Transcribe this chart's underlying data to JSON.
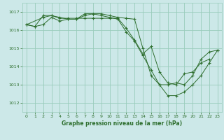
{
  "background_color": "#cce8e8",
  "grid_color": "#99ccbb",
  "line_color": "#2d6e2d",
  "marker_color": "#2d6e2d",
  "title": "Graphe pression niveau de la mer (hPa)",
  "xlim": [
    -0.5,
    23.5
  ],
  "ylim": [
    1011.5,
    1017.5
  ],
  "yticks": [
    1012,
    1013,
    1014,
    1015,
    1016,
    1017
  ],
  "xticks": [
    0,
    1,
    2,
    3,
    4,
    5,
    6,
    7,
    8,
    9,
    10,
    11,
    12,
    13,
    14,
    15,
    16,
    17,
    18,
    19,
    20,
    21,
    22,
    23
  ],
  "series": [
    {
      "x": [
        0,
        1,
        2,
        3,
        4,
        5,
        6,
        7,
        8,
        9,
        10,
        11,
        12,
        13,
        14,
        15,
        16,
        17,
        18,
        19,
        20,
        21,
        22,
        23
      ],
      "y": [
        1016.3,
        1016.2,
        1016.3,
        1016.7,
        1016.5,
        1016.6,
        1016.6,
        1016.8,
        1016.9,
        1016.9,
        1016.8,
        1016.7,
        1016.65,
        1016.6,
        1015.0,
        1013.5,
        1013.0,
        1013.0,
        1013.1,
        1013.0,
        1013.5,
        1014.4,
        1014.8,
        1014.9
      ]
    },
    {
      "x": [
        0,
        1,
        2,
        3,
        4,
        5,
        6,
        7,
        8,
        9,
        10,
        11,
        12,
        13,
        14,
        15,
        16,
        17,
        18,
        19,
        20,
        21,
        22,
        23
      ],
      "y": [
        1016.3,
        1016.2,
        1016.8,
        1016.8,
        1016.65,
        1016.65,
        1016.65,
        1016.65,
        1016.65,
        1016.65,
        1016.65,
        1016.65,
        1016.1,
        1015.45,
        1014.7,
        1015.1,
        1013.7,
        1013.1,
        1013.0,
        1013.6,
        1013.7,
        1014.2,
        1014.4,
        null
      ]
    },
    {
      "x": [
        0,
        2,
        3,
        4,
        5,
        6,
        7,
        8,
        9,
        10,
        11,
        12,
        13,
        14,
        15,
        16,
        17,
        18,
        19,
        20,
        21,
        22,
        23
      ],
      "y": [
        1016.3,
        1016.7,
        1016.8,
        1016.7,
        1016.6,
        1016.6,
        1016.9,
        1016.9,
        1016.8,
        1016.7,
        1016.6,
        1015.9,
        1015.4,
        1014.6,
        1013.8,
        1013.0,
        1012.4,
        1012.4,
        1012.6,
        1013.0,
        1013.5,
        1014.2,
        1014.9
      ]
    }
  ]
}
